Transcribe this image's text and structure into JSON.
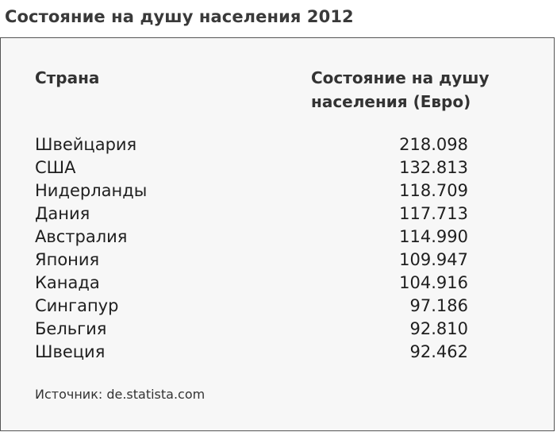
{
  "title": "Состояние на душу населения 2012",
  "table": {
    "headers": {
      "country": "Страна",
      "wealth": "Состояние на душу населения (Евро)"
    },
    "rows": [
      {
        "country": "Швейцария",
        "value": "218.098"
      },
      {
        "country": "США",
        "value": "132.813"
      },
      {
        "country": "Нидерланды",
        "value": "118.709"
      },
      {
        "country": "Дания",
        "value": "117.713"
      },
      {
        "country": "Австралия",
        "value": "114.990"
      },
      {
        "country": "Япония",
        "value": "109.947"
      },
      {
        "country": "Канада",
        "value": "104.916"
      },
      {
        "country": "Сингапур",
        "value": "97.186"
      },
      {
        "country": "Бельгия",
        "value": "92.810"
      },
      {
        "country": "Швеция",
        "value": "92.462"
      }
    ]
  },
  "source": "Источник: de.statista.com"
}
